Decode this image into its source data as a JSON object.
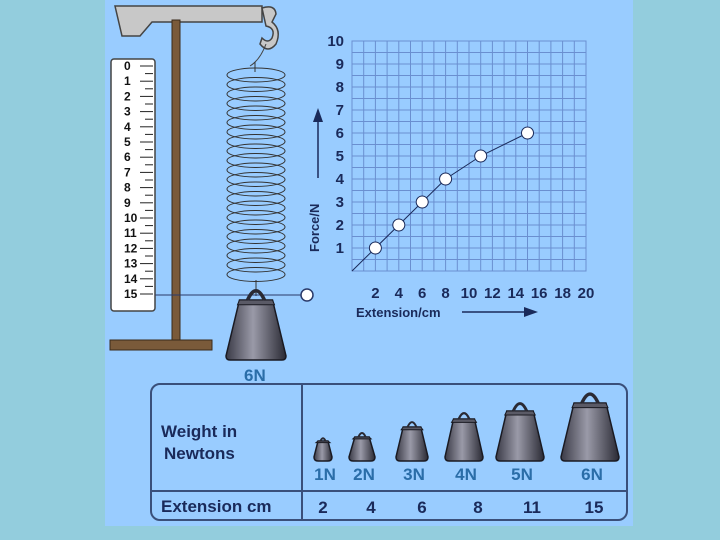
{
  "ruler": {
    "labels": [
      "0",
      "1",
      "2",
      "3",
      "4",
      "5",
      "6",
      "7",
      "8",
      "9",
      "10",
      "11",
      "12",
      "13",
      "14",
      "15"
    ]
  },
  "weight_caption": "6N",
  "chart_data": {
    "type": "line",
    "x": [
      2,
      4,
      6,
      8,
      11,
      15
    ],
    "y": [
      1,
      2,
      3,
      4,
      5,
      6
    ],
    "xlabel": "Extension/cm",
    "ylabel": "Force/N",
    "xlim": [
      0,
      20
    ],
    "ylim": [
      0,
      10
    ],
    "xticks": [
      "2",
      "4",
      "6",
      "8",
      "10",
      "12",
      "14",
      "16",
      "18",
      "20"
    ],
    "yticks": [
      "1",
      "2",
      "3",
      "4",
      "5",
      "6",
      "7",
      "8",
      "9",
      "10"
    ],
    "grid": true,
    "line_color": "#1a2a5a",
    "grid_color": "#6a8fd0",
    "marker_fill": "#ffffff"
  },
  "table": {
    "weight_header": [
      "Weight in",
      "Newtons"
    ],
    "extension_header": "Extension cm",
    "weights": [
      "1N",
      "2N",
      "3N",
      "4N",
      "5N",
      "6N"
    ],
    "extensions": [
      "2",
      "4",
      "6",
      "8",
      "11",
      "15"
    ]
  }
}
